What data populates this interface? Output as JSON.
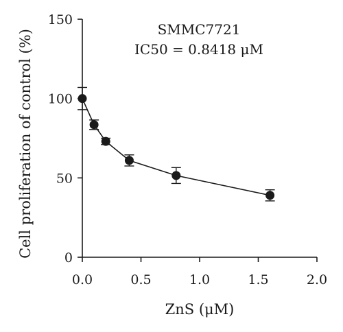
{
  "chart_data": {
    "type": "line",
    "title": "",
    "annotations": [
      "SMMC7721",
      "IC50 = 0.8418 μM"
    ],
    "xlabel": "ZnS (μM)",
    "ylabel": "Cell proliferation of control (%)",
    "xlim": [
      0,
      2.0
    ],
    "ylim": [
      0,
      150
    ],
    "x_ticks": [
      "0.0",
      "0.5",
      "1.0",
      "1.5",
      "2.0"
    ],
    "y_ticks": [
      "0",
      "50",
      "100",
      "150"
    ],
    "grid": false,
    "series": [
      {
        "x": [
          0,
          0.1,
          0.2,
          0.4,
          0.8,
          1.6
        ],
        "values": [
          100,
          83.5,
          73,
          61,
          51.5,
          39
        ],
        "errors": [
          7,
          3,
          2,
          3.5,
          5,
          3.5
        ]
      }
    ]
  }
}
